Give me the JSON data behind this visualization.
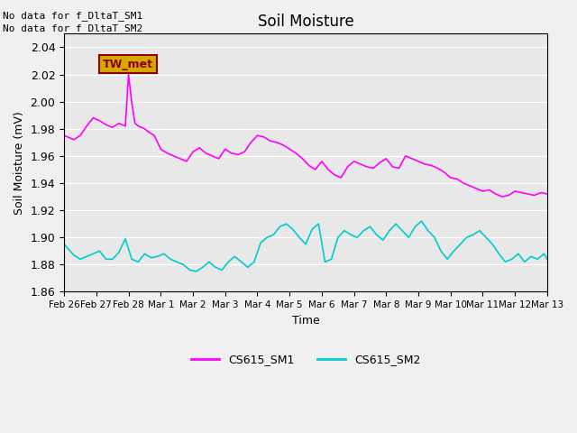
{
  "title": "Soil Moisture",
  "ylabel": "Soil Moisture (mV)",
  "xlabel": "Time",
  "ylim": [
    1.86,
    2.05
  ],
  "yticks": [
    1.86,
    1.88,
    1.9,
    1.92,
    1.94,
    1.96,
    1.98,
    2.0,
    2.02,
    2.04
  ],
  "no_data_text": [
    "No data for f_DltaT_SM1",
    "No data for f_DltaT_SM2"
  ],
  "tw_met_label": "TW_met",
  "tw_met_bg": "#d4aa00",
  "tw_met_fg": "#8b0000",
  "legend_labels": [
    "CS615_SM1",
    "CS615_SM2"
  ],
  "line1_color": "#ff00ff",
  "line2_color": "#00cccc",
  "background_color": "#e8e8e8",
  "grid_color": "#ffffff",
  "xtick_labels": [
    "Feb 26",
    "Feb 27",
    "Feb 28",
    "Mar 1",
    "Mar 2",
    "Mar 3",
    "Mar 4",
    "Mar 5",
    "Mar 6",
    "Mar 7",
    "Mar 8",
    "Mar 9",
    "Mar 10",
    "Mar 11",
    "Mar 12",
    "Mar 13"
  ],
  "sm1_x": [
    0,
    0.3,
    0.5,
    0.7,
    0.9,
    1.1,
    1.3,
    1.5,
    1.7,
    1.9,
    2.0,
    2.1,
    2.2,
    2.3,
    2.4,
    2.5,
    2.6,
    2.8,
    3.0,
    3.2,
    3.4,
    3.6,
    3.8,
    4.0,
    4.2,
    4.4,
    4.6,
    4.8,
    5.0,
    5.2,
    5.4,
    5.6,
    5.8,
    6.0,
    6.2,
    6.4,
    6.6,
    6.8,
    7.0,
    7.2,
    7.4,
    7.6,
    7.8,
    8.0,
    8.2,
    8.4,
    8.6,
    8.8,
    9.0,
    9.2,
    9.4,
    9.6,
    9.8,
    10.0,
    10.2,
    10.4,
    10.6,
    10.8,
    11.0,
    11.2,
    11.4,
    11.6,
    11.8,
    12.0,
    12.2,
    12.4,
    12.6,
    12.8,
    13.0,
    13.2,
    13.4,
    13.6,
    13.8,
    14.0,
    14.2,
    14.4,
    14.6,
    14.8,
    15.0
  ],
  "sm1_y": [
    1.975,
    1.972,
    1.975,
    1.982,
    1.988,
    1.986,
    1.983,
    1.981,
    1.984,
    1.982,
    2.02,
    1.999,
    1.984,
    1.982,
    1.981,
    1.98,
    1.978,
    1.975,
    1.965,
    1.962,
    1.96,
    1.958,
    1.956,
    1.963,
    1.966,
    1.962,
    1.96,
    1.958,
    1.965,
    1.962,
    1.961,
    1.963,
    1.97,
    1.975,
    1.974,
    1.971,
    1.97,
    1.968,
    1.965,
    1.962,
    1.958,
    1.953,
    1.95,
    1.956,
    1.95,
    1.946,
    1.944,
    1.952,
    1.956,
    1.954,
    1.952,
    1.951,
    1.955,
    1.958,
    1.952,
    1.951,
    1.96,
    1.958,
    1.956,
    1.954,
    1.953,
    1.951,
    1.948,
    1.944,
    1.943,
    1.94,
    1.938,
    1.936,
    1.934,
    1.935,
    1.932,
    1.93,
    1.931,
    1.934,
    1.933,
    1.932,
    1.931,
    1.933,
    1.932
  ],
  "sm2_x": [
    0,
    0.3,
    0.5,
    0.7,
    0.9,
    1.1,
    1.3,
    1.5,
    1.7,
    1.9,
    2.1,
    2.3,
    2.5,
    2.7,
    2.9,
    3.1,
    3.3,
    3.5,
    3.7,
    3.9,
    4.1,
    4.3,
    4.5,
    4.7,
    4.9,
    5.1,
    5.3,
    5.5,
    5.7,
    5.9,
    6.1,
    6.3,
    6.5,
    6.7,
    6.9,
    7.1,
    7.3,
    7.5,
    7.7,
    7.9,
    8.1,
    8.3,
    8.5,
    8.7,
    8.9,
    9.1,
    9.3,
    9.5,
    9.7,
    9.9,
    10.1,
    10.3,
    10.5,
    10.7,
    10.9,
    11.1,
    11.3,
    11.5,
    11.7,
    11.9,
    12.1,
    12.3,
    12.5,
    12.7,
    12.9,
    13.1,
    13.3,
    13.5,
    13.7,
    13.9,
    14.1,
    14.3,
    14.5,
    14.7,
    14.9,
    15.0
  ],
  "sm2_y": [
    1.895,
    1.887,
    1.884,
    1.886,
    1.888,
    1.89,
    1.884,
    1.884,
    1.889,
    1.899,
    1.884,
    1.882,
    1.888,
    1.885,
    1.886,
    1.888,
    1.884,
    1.882,
    1.88,
    1.876,
    1.875,
    1.878,
    1.882,
    1.878,
    1.876,
    1.882,
    1.886,
    1.882,
    1.878,
    1.882,
    1.896,
    1.9,
    1.902,
    1.908,
    1.91,
    1.906,
    1.9,
    1.895,
    1.906,
    1.91,
    1.882,
    1.884,
    1.9,
    1.905,
    1.902,
    1.9,
    1.905,
    1.908,
    1.902,
    1.898,
    1.905,
    1.91,
    1.905,
    1.9,
    1.908,
    1.912,
    1.905,
    1.9,
    1.89,
    1.884,
    1.89,
    1.895,
    1.9,
    1.902,
    1.905,
    1.9,
    1.895,
    1.888,
    1.882,
    1.884,
    1.888,
    1.882,
    1.886,
    1.884,
    1.888,
    1.884
  ]
}
